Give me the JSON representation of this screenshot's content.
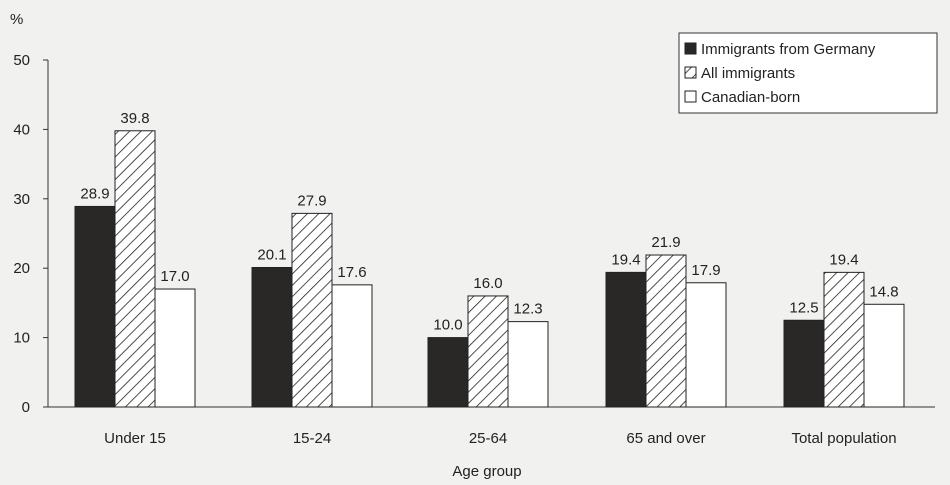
{
  "chart_data": {
    "type": "bar",
    "title": "",
    "xlabel": "Age group",
    "ylabel": "%",
    "ylim": [
      0,
      50
    ],
    "yticks": [
      0,
      10,
      20,
      30,
      40,
      50
    ],
    "grid": false,
    "legend_position": "top-right",
    "categories": [
      "Under 15",
      "15-24",
      "25-64",
      "65 and over",
      "Total population"
    ],
    "series": [
      {
        "name": "Immigrants from Germany",
        "values": [
          28.9,
          20.1,
          10.0,
          19.4,
          12.5
        ],
        "fill": "dark",
        "color": "#2a2727"
      },
      {
        "name": "All immigrants",
        "values": [
          39.8,
          27.9,
          16.0,
          21.9,
          19.4
        ],
        "fill": "hatch",
        "color": "#ffffff"
      },
      {
        "name": "Canadian-born",
        "values": [
          17.0,
          17.6,
          12.3,
          17.9,
          14.8
        ],
        "fill": "white",
        "color": "#ffffff"
      }
    ]
  }
}
